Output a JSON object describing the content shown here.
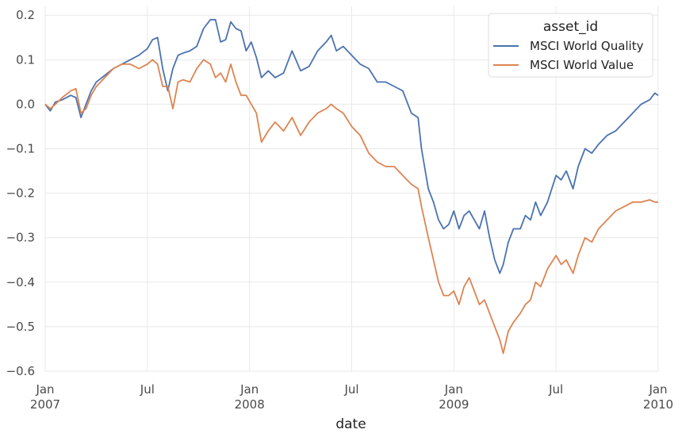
{
  "chart_data": {
    "type": "line",
    "title": "",
    "xlabel": "date",
    "ylabel": "",
    "ylim": [
      -0.6,
      0.22
    ],
    "yticks": [
      0.2,
      0.1,
      0.0,
      -0.1,
      -0.2,
      -0.3,
      -0.4,
      -0.5,
      -0.6
    ],
    "ytick_labels": [
      "0.2",
      "0.1",
      "0.0",
      "−0.1",
      "−0.2",
      "−0.3",
      "−0.4",
      "−0.5",
      "−0.6"
    ],
    "xlim_months": [
      0,
      36
    ],
    "xticks": [
      {
        "m": 0,
        "line1": "Jan",
        "line2": "2007"
      },
      {
        "m": 6,
        "line1": "Jul",
        "line2": ""
      },
      {
        "m": 12,
        "line1": "Jan",
        "line2": "2008"
      },
      {
        "m": 18,
        "line1": "Jul",
        "line2": ""
      },
      {
        "m": 24,
        "line1": "Jan",
        "line2": "2009"
      },
      {
        "m": 30,
        "line1": "Jul",
        "line2": ""
      },
      {
        "m": 36,
        "line1": "Jan",
        "line2": "2010"
      }
    ],
    "grid": true,
    "legend": {
      "title": "asset_id",
      "position": "top-right"
    },
    "series": [
      {
        "name": "MSCI World Quality",
        "color": "#4c72b0",
        "points": [
          [
            0,
            0.0
          ],
          [
            0.3,
            -0.015
          ],
          [
            0.6,
            0.005
          ],
          [
            1.0,
            0.01
          ],
          [
            1.5,
            0.02
          ],
          [
            1.8,
            0.015
          ],
          [
            2.1,
            -0.03
          ],
          [
            2.4,
            0.0
          ],
          [
            2.7,
            0.03
          ],
          [
            3.0,
            0.05
          ],
          [
            3.5,
            0.065
          ],
          [
            4.0,
            0.08
          ],
          [
            4.5,
            0.09
          ],
          [
            5.0,
            0.1
          ],
          [
            5.5,
            0.11
          ],
          [
            6.0,
            0.125
          ],
          [
            6.3,
            0.145
          ],
          [
            6.6,
            0.15
          ],
          [
            6.9,
            0.08
          ],
          [
            7.2,
            0.03
          ],
          [
            7.5,
            0.08
          ],
          [
            7.8,
            0.11
          ],
          [
            8.1,
            0.115
          ],
          [
            8.5,
            0.12
          ],
          [
            8.9,
            0.13
          ],
          [
            9.3,
            0.17
          ],
          [
            9.7,
            0.19
          ],
          [
            10.0,
            0.19
          ],
          [
            10.3,
            0.14
          ],
          [
            10.6,
            0.145
          ],
          [
            10.9,
            0.185
          ],
          [
            11.2,
            0.17
          ],
          [
            11.5,
            0.165
          ],
          [
            11.8,
            0.12
          ],
          [
            12.1,
            0.14
          ],
          [
            12.4,
            0.105
          ],
          [
            12.7,
            0.06
          ],
          [
            13.1,
            0.075
          ],
          [
            13.5,
            0.06
          ],
          [
            14.0,
            0.07
          ],
          [
            14.5,
            0.12
          ],
          [
            15.0,
            0.075
          ],
          [
            15.5,
            0.085
          ],
          [
            16.0,
            0.12
          ],
          [
            16.5,
            0.14
          ],
          [
            16.8,
            0.155
          ],
          [
            17.1,
            0.12
          ],
          [
            17.5,
            0.13
          ],
          [
            18.0,
            0.11
          ],
          [
            18.5,
            0.09
          ],
          [
            19.0,
            0.08
          ],
          [
            19.5,
            0.05
          ],
          [
            20.0,
            0.05
          ],
          [
            20.5,
            0.04
          ],
          [
            21.0,
            0.03
          ],
          [
            21.5,
            -0.02
          ],
          [
            21.9,
            -0.03
          ],
          [
            22.1,
            -0.1
          ],
          [
            22.5,
            -0.19
          ],
          [
            22.8,
            -0.22
          ],
          [
            23.1,
            -0.26
          ],
          [
            23.4,
            -0.28
          ],
          [
            23.7,
            -0.27
          ],
          [
            24.0,
            -0.24
          ],
          [
            24.3,
            -0.28
          ],
          [
            24.6,
            -0.25
          ],
          [
            24.9,
            -0.24
          ],
          [
            25.2,
            -0.26
          ],
          [
            25.5,
            -0.28
          ],
          [
            25.8,
            -0.24
          ],
          [
            26.1,
            -0.3
          ],
          [
            26.4,
            -0.35
          ],
          [
            26.7,
            -0.38
          ],
          [
            26.9,
            -0.36
          ],
          [
            27.2,
            -0.31
          ],
          [
            27.5,
            -0.28
          ],
          [
            27.9,
            -0.28
          ],
          [
            28.2,
            -0.25
          ],
          [
            28.5,
            -0.26
          ],
          [
            28.8,
            -0.22
          ],
          [
            29.1,
            -0.25
          ],
          [
            29.5,
            -0.22
          ],
          [
            30.0,
            -0.16
          ],
          [
            30.3,
            -0.17
          ],
          [
            30.6,
            -0.15
          ],
          [
            31.0,
            -0.19
          ],
          [
            31.3,
            -0.14
          ],
          [
            31.7,
            -0.1
          ],
          [
            32.1,
            -0.11
          ],
          [
            32.5,
            -0.09
          ],
          [
            33.0,
            -0.07
          ],
          [
            33.5,
            -0.06
          ],
          [
            34.0,
            -0.04
          ],
          [
            34.5,
            -0.02
          ],
          [
            35.0,
            0.0
          ],
          [
            35.5,
            0.01
          ],
          [
            35.8,
            0.025
          ],
          [
            36.0,
            0.02
          ]
        ]
      },
      {
        "name": "MSCI World Value",
        "color": "#dd8452",
        "points": [
          [
            0,
            0.0
          ],
          [
            0.3,
            -0.01
          ],
          [
            0.6,
            0.0
          ],
          [
            1.0,
            0.015
          ],
          [
            1.5,
            0.03
          ],
          [
            1.8,
            0.035
          ],
          [
            2.1,
            -0.02
          ],
          [
            2.4,
            -0.01
          ],
          [
            2.7,
            0.02
          ],
          [
            3.0,
            0.04
          ],
          [
            3.5,
            0.06
          ],
          [
            4.0,
            0.08
          ],
          [
            4.5,
            0.09
          ],
          [
            5.0,
            0.09
          ],
          [
            5.5,
            0.08
          ],
          [
            6.0,
            0.09
          ],
          [
            6.3,
            0.1
          ],
          [
            6.6,
            0.09
          ],
          [
            6.9,
            0.04
          ],
          [
            7.2,
            0.04
          ],
          [
            7.5,
            -0.01
          ],
          [
            7.8,
            0.05
          ],
          [
            8.1,
            0.055
          ],
          [
            8.5,
            0.05
          ],
          [
            8.9,
            0.08
          ],
          [
            9.3,
            0.1
          ],
          [
            9.7,
            0.09
          ],
          [
            10.0,
            0.06
          ],
          [
            10.3,
            0.07
          ],
          [
            10.6,
            0.05
          ],
          [
            10.9,
            0.09
          ],
          [
            11.2,
            0.05
          ],
          [
            11.5,
            0.02
          ],
          [
            11.8,
            0.02
          ],
          [
            12.1,
            0.0
          ],
          [
            12.4,
            -0.02
          ],
          [
            12.7,
            -0.085
          ],
          [
            13.1,
            -0.06
          ],
          [
            13.5,
            -0.04
          ],
          [
            14.0,
            -0.06
          ],
          [
            14.5,
            -0.03
          ],
          [
            15.0,
            -0.07
          ],
          [
            15.5,
            -0.04
          ],
          [
            16.0,
            -0.02
          ],
          [
            16.5,
            -0.01
          ],
          [
            16.8,
            0.0
          ],
          [
            17.1,
            -0.01
          ],
          [
            17.5,
            -0.02
          ],
          [
            18.0,
            -0.05
          ],
          [
            18.5,
            -0.07
          ],
          [
            19.0,
            -0.11
          ],
          [
            19.5,
            -0.13
          ],
          [
            20.0,
            -0.14
          ],
          [
            20.5,
            -0.14
          ],
          [
            21.0,
            -0.16
          ],
          [
            21.5,
            -0.18
          ],
          [
            21.9,
            -0.19
          ],
          [
            22.1,
            -0.23
          ],
          [
            22.5,
            -0.3
          ],
          [
            22.8,
            -0.35
          ],
          [
            23.1,
            -0.4
          ],
          [
            23.4,
            -0.43
          ],
          [
            23.7,
            -0.43
          ],
          [
            24.0,
            -0.42
          ],
          [
            24.3,
            -0.45
          ],
          [
            24.6,
            -0.41
          ],
          [
            24.9,
            -0.39
          ],
          [
            25.2,
            -0.42
          ],
          [
            25.5,
            -0.45
          ],
          [
            25.8,
            -0.44
          ],
          [
            26.1,
            -0.47
          ],
          [
            26.4,
            -0.5
          ],
          [
            26.7,
            -0.53
          ],
          [
            26.9,
            -0.56
          ],
          [
            27.2,
            -0.51
          ],
          [
            27.5,
            -0.49
          ],
          [
            27.9,
            -0.47
          ],
          [
            28.2,
            -0.45
          ],
          [
            28.5,
            -0.44
          ],
          [
            28.8,
            -0.4
          ],
          [
            29.1,
            -0.41
          ],
          [
            29.5,
            -0.37
          ],
          [
            30.0,
            -0.34
          ],
          [
            30.3,
            -0.36
          ],
          [
            30.6,
            -0.35
          ],
          [
            31.0,
            -0.38
          ],
          [
            31.3,
            -0.34
          ],
          [
            31.7,
            -0.3
          ],
          [
            32.1,
            -0.31
          ],
          [
            32.5,
            -0.28
          ],
          [
            33.0,
            -0.26
          ],
          [
            33.5,
            -0.24
          ],
          [
            34.0,
            -0.23
          ],
          [
            34.5,
            -0.22
          ],
          [
            35.0,
            -0.22
          ],
          [
            35.5,
            -0.215
          ],
          [
            35.8,
            -0.22
          ],
          [
            36.0,
            -0.22
          ]
        ]
      }
    ]
  }
}
